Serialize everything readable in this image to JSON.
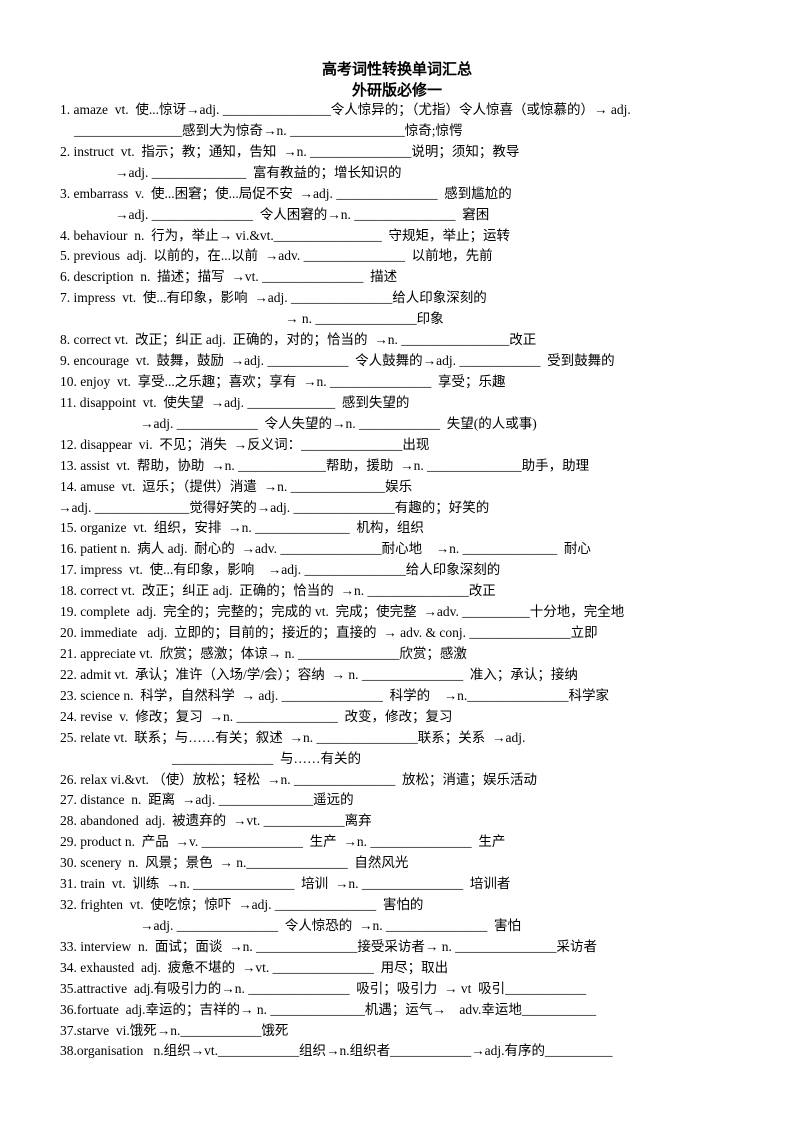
{
  "title": "高考词性转换单词汇总",
  "subtitle": "外研版必修一",
  "lines": [
    {
      "text": "1. amaze  vt.  使...惊讶→adj. ________________令人惊异的；（尤指）令人惊喜（或惊慕的）→ adj."
    },
    {
      "text": "________________感到大为惊奇→n. _________________惊奇;惊愕"
    },
    {
      "text": "2. instruct  vt.  指示；教；通知，告知  →n. _______________说明；须知；教导"
    },
    {
      "text": "→adj. ______________  富有教益的；增长知识的"
    },
    {
      "text": "3. embarrass  v.  使...困窘；使...局促不安  →adj. _______________  感到尴尬的"
    },
    {
      "text": "→adj. _______________  令人困窘的→n. _______________  窘困"
    },
    {
      "text": "4. behaviour  n.  行为，举止→ vi.&vt.________________  守规矩，举止；运转"
    },
    {
      "text": "5. previous  adj.  以前的，在...以前  →adv. _______________  以前地，先前"
    },
    {
      "text": "6. description  n.  描述；描写  →vt. _______________  描述"
    },
    {
      "text": "7. impress  vt.  使...有印象，影响  →adj. _______________给人印象深刻的"
    },
    {
      "text": "→ n. _______________印象"
    },
    {
      "text": "8. correct vt.  改正；纠正 adj.  正确的，对的；恰当的  →n. ________________改正"
    },
    {
      "text": "9. encourage  vt.  鼓舞，鼓励  →adj. ____________  令人鼓舞的→adj. ____________  受到鼓舞的"
    },
    {
      "text": "10. enjoy  vt.  享受...之乐趣；喜欢；享有  →n. _______________  享受；乐趣"
    },
    {
      "text": "11. disappoint  vt.  使失望  →adj. _____________  感到失望的"
    },
    {
      "text": "→adj. ____________  令人失望的→n. ____________  失望(的人或事)"
    },
    {
      "text": "12. disappear  vi.  不见；消失  →反义词：_______________出现"
    },
    {
      "text": "13. assist  vt.  帮助，协助  →n. _____________帮助，援助  →n. ______________助手，助理"
    },
    {
      "text": "14. amuse  vt.  逗乐；（提供）消遣  →n. ______________娱乐"
    },
    {
      "text": "→adj. ______________觉得好笑的→adj. _______________有趣的；好笑的"
    },
    {
      "text": "15. organize  vt.  组织，安排  →n. ______________  机构，组织"
    },
    {
      "text": "16. patient n.  病人 adj.  耐心的  →adv. _______________耐心地    →n. ______________  耐心"
    },
    {
      "text": "17. impress  vt.  使...有印象，影响    →adj. _______________给人印象深刻的"
    },
    {
      "text": "18. correct vt.  改正；纠正 adj.  正确的；恰当的  →n. _______________改正"
    },
    {
      "text": "19. complete  adj.  完全的；完整的；完成的 vt.  完成；使完整  →adv. __________十分地，完全地"
    },
    {
      "text": "20. immediate   adj.  立即的；目前的；接近的；直接的  → adv. & conj. _______________立即"
    },
    {
      "text": "21. appreciate vt.  欣赏；感激；体谅→ n. _______________欣赏；感激"
    },
    {
      "text": "22. admit vt.  承认；准许（入场/学/会）；容纳  → n. _______________  准入；承认；接纳"
    },
    {
      "text": "23. science n.  科学，自然科学  → adj. _______________  科学的    →n._______________科学家"
    },
    {
      "text": "24. revise  v.  修改；复习  →n. _______________  改变，修改；复习"
    },
    {
      "text": "25. relate vt.  联系；与……有关；叙述  →n. _______________联系；关系  →adj."
    },
    {
      "text": "_______________  与……有关的"
    },
    {
      "text": "26. relax vi.&vt. （使）放松；轻松  →n. _______________  放松；消遣；娱乐活动"
    },
    {
      "text": "27. distance  n.  距离  →adj. ______________遥远的"
    },
    {
      "text": "28. abandoned  adj.  被遗弃的  →vt. ____________离弃"
    },
    {
      "text": "29. product n.  产品  →v. _______________  生产  →n. _______________  生产"
    },
    {
      "text": "30. scenery  n.  风景；景色  → n._______________  自然风光"
    },
    {
      "text": "31. train  vt.  训练  →n. _______________  培训  →n. _______________  培训者"
    },
    {
      "text": "32. frighten  vt.  使吃惊；惊吓  →adj. _______________  害怕的"
    },
    {
      "text": "→adj. _______________  令人惊恐的  →n. _______________  害怕"
    },
    {
      "text": "33. interview  n.  面试；面谈  →n. _______________接受采访者→ n. _______________采访者"
    },
    {
      "text": "34. exhausted  adj.  疲惫不堪的  →vt. _______________  用尽；取出"
    },
    {
      "text": "35.attractive  adj.有吸引力的→n. _______________  吸引；吸引力  → vt  吸引____________"
    },
    {
      "text": "36.fortuate  adj.幸运的；吉祥的→ n. ______________机遇；运气→    adv.幸运地___________"
    },
    {
      "text": "37.starve  vi.饿死→n.____________饿死"
    },
    {
      "text": "38.organisation   n.组织→vt.____________组织→n.组织者____________→adj.有序的__________"
    }
  ]
}
